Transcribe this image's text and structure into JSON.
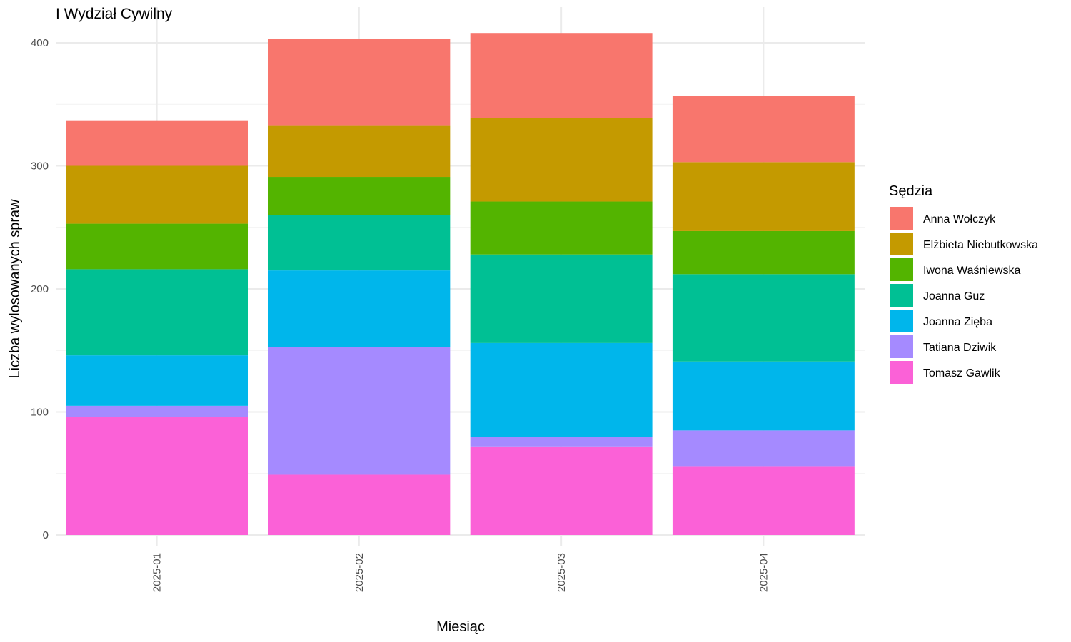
{
  "chart_data": {
    "type": "bar",
    "stacked": true,
    "title": "I Wydział Cywilny",
    "xlabel": "Miesiąc",
    "ylabel": "Liczba wylosowanych spraw",
    "categories": [
      "2025-01",
      "2025-02",
      "2025-03",
      "2025-04"
    ],
    "ylim": [
      0,
      420
    ],
    "yticks": [
      0,
      100,
      200,
      300,
      400
    ],
    "grid": true,
    "legend": {
      "title": "Sędzia",
      "placement": "right"
    },
    "series": [
      {
        "name": "Tomasz Gawlik",
        "color": "#FB61D7",
        "values": [
          96,
          49,
          72,
          56
        ]
      },
      {
        "name": "Tatiana Dziwik",
        "color": "#A58AFF",
        "values": [
          9,
          104,
          8,
          29
        ]
      },
      {
        "name": "Joanna Zięba",
        "color": "#00B6EB",
        "values": [
          41,
          62,
          76,
          56
        ]
      },
      {
        "name": "Joanna Guz",
        "color": "#00C094",
        "values": [
          70,
          45,
          72,
          71
        ]
      },
      {
        "name": "Iwona Waśniewska",
        "color": "#53B400",
        "values": [
          37,
          31,
          43,
          35
        ]
      },
      {
        "name": "Elżbieta Niebutkowska",
        "color": "#C49A00",
        "values": [
          47,
          42,
          68,
          56
        ]
      },
      {
        "name": "Anna Wołczyk",
        "color": "#F8766D",
        "values": [
          37,
          70,
          69,
          54
        ]
      }
    ],
    "legend_order": [
      "Anna Wołczyk",
      "Elżbieta Niebutkowska",
      "Iwona Waśniewska",
      "Joanna Guz",
      "Joanna Zięba",
      "Tatiana Dziwik",
      "Tomasz Gawlik"
    ]
  }
}
